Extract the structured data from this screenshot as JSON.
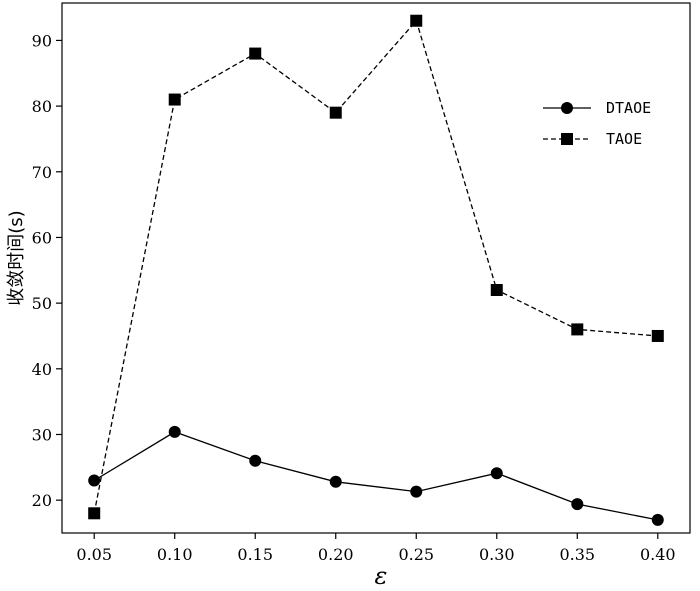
{
  "chart_data": {
    "type": "line",
    "xlabel": "ε",
    "ylabel": "收敛时间(s)",
    "x": [
      0.05,
      0.1,
      0.15,
      0.2,
      0.25,
      0.3,
      0.35,
      0.4
    ],
    "x_tick_labels": [
      "0.05",
      "0.10",
      "0.15",
      "0.20",
      "0.25",
      "0.30",
      "0.35",
      "0.40"
    ],
    "xlim": [
      0.03,
      0.42
    ],
    "y_ticks": [
      20,
      30,
      40,
      50,
      60,
      70,
      80,
      90
    ],
    "ylim": [
      15,
      95.7
    ],
    "grid": false,
    "legend_position": "upper right",
    "series": [
      {
        "name": "DTAOE",
        "marker": "circle",
        "line_style": "solid",
        "color": "#000000",
        "values": [
          23,
          30.4,
          26,
          22.8,
          21.3,
          24.1,
          19.4,
          17
        ]
      },
      {
        "name": "TAOE",
        "marker": "square",
        "line_style": "dashed",
        "color": "#000000",
        "values": [
          18,
          81,
          88,
          79,
          93,
          52,
          46,
          45
        ]
      }
    ]
  }
}
